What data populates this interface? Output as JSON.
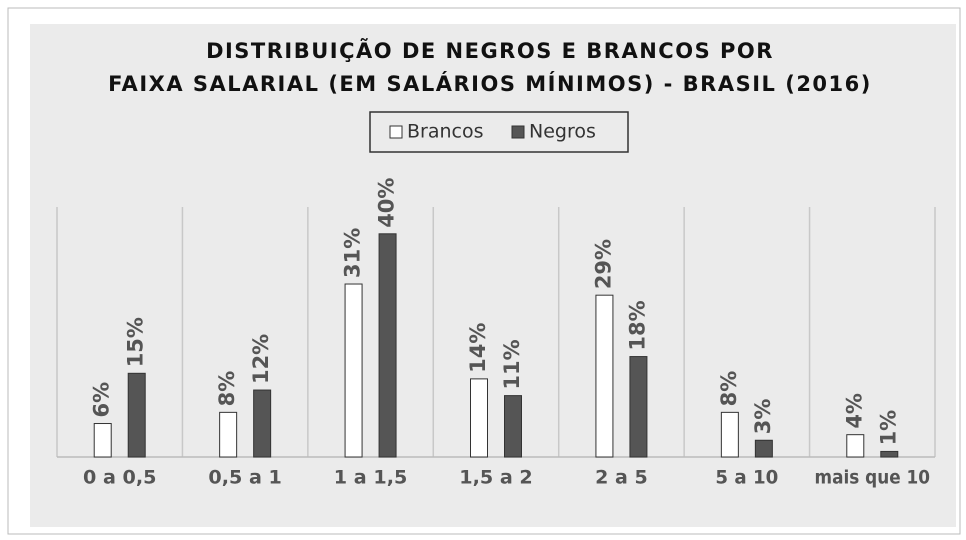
{
  "chart_data": {
    "type": "bar",
    "title": [
      "DISTRIBUIÇÃO DE NEGROS E BRANCOS POR",
      "FAIXA SALARIAL  (EM SALÁRIOS MÍNIMOS) - BRASIL (2016)"
    ],
    "categories": [
      "0 a 0,5",
      "0,5 a 1",
      "1 a 1,5",
      "1,5 a 2",
      "2 a 5",
      "5 a 10",
      "mais que 10"
    ],
    "series": [
      {
        "name": "Brancos",
        "color": "#ffffff",
        "values": [
          6,
          8,
          31,
          14,
          29,
          8,
          4
        ],
        "value_labels": [
          "6%",
          "8%",
          "31%",
          "14%",
          "29%",
          "8%",
          "4%"
        ]
      },
      {
        "name": "Negros",
        "color": "#555555",
        "values": [
          15,
          12,
          40,
          11,
          18,
          3,
          1
        ],
        "value_labels": [
          "15%",
          "12%",
          "40%",
          "11%",
          "18%",
          "3%",
          "1%"
        ]
      }
    ]
  }
}
